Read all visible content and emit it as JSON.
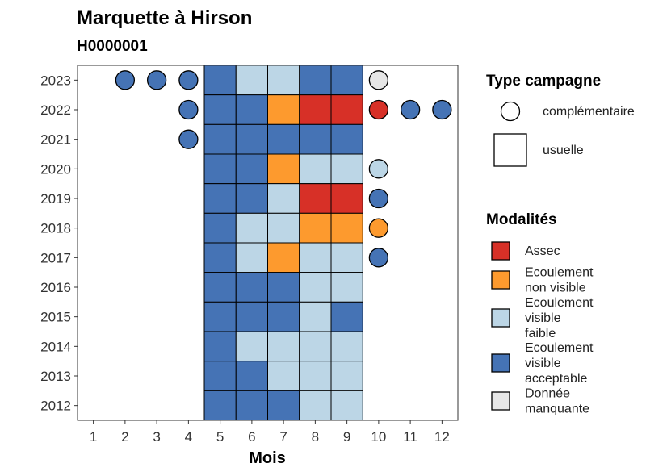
{
  "chart_data": {
    "type": "heatmap",
    "title": "Marquette à Hirson",
    "subtitle": "H0000001",
    "xlabel": "Mois",
    "ylabel": "",
    "x_ticks": [
      1,
      2,
      3,
      4,
      5,
      6,
      7,
      8,
      9,
      10,
      11,
      12
    ],
    "years": [
      2012,
      2013,
      2014,
      2015,
      2016,
      2017,
      2018,
      2019,
      2020,
      2021,
      2022,
      2023
    ],
    "xlim": [
      0.5,
      12.5
    ],
    "grid": false,
    "colors": {
      "Assec": "#d73027",
      "Ecoulement non visible": "#fd9a2e",
      "Ecoulement visible faible": "#bcd6e6",
      "Ecoulement visible acceptable": "#4573b5",
      "Donnée manquante": "#e6e6e6"
    },
    "legend_type": {
      "title": "Type campagne",
      "items": [
        {
          "label": "complémentaire",
          "shape": "circle"
        },
        {
          "label": "usuelle",
          "shape": "square"
        }
      ]
    },
    "legend_modalites": {
      "title": "Modalités",
      "items": [
        {
          "key": "Assec",
          "lines": [
            "Assec"
          ]
        },
        {
          "key": "Ecoulement non visible",
          "lines": [
            "Ecoulement",
            "non visible"
          ]
        },
        {
          "key": "Ecoulement visible faible",
          "lines": [
            "Ecoulement",
            "visible",
            "faible"
          ]
        },
        {
          "key": "Ecoulement visible acceptable",
          "lines": [
            "Ecoulement",
            "visible",
            "acceptable"
          ]
        },
        {
          "key": "Donnée manquante",
          "lines": [
            "Donnée",
            "manquante"
          ]
        }
      ]
    },
    "usuelle": [
      {
        "year": 2023,
        "values": [
          {
            "month": 5,
            "modalite": "Ecoulement visible acceptable"
          },
          {
            "month": 6,
            "modalite": "Ecoulement visible faible"
          },
          {
            "month": 7,
            "modalite": "Ecoulement visible faible"
          },
          {
            "month": 8,
            "modalite": "Ecoulement visible acceptable"
          },
          {
            "month": 9,
            "modalite": "Ecoulement visible acceptable"
          }
        ]
      },
      {
        "year": 2022,
        "values": [
          {
            "month": 5,
            "modalite": "Ecoulement visible acceptable"
          },
          {
            "month": 6,
            "modalite": "Ecoulement visible acceptable"
          },
          {
            "month": 7,
            "modalite": "Ecoulement non visible"
          },
          {
            "month": 8,
            "modalite": "Assec"
          },
          {
            "month": 9,
            "modalite": "Assec"
          }
        ]
      },
      {
        "year": 2021,
        "values": [
          {
            "month": 5,
            "modalite": "Ecoulement visible acceptable"
          },
          {
            "month": 6,
            "modalite": "Ecoulement visible acceptable"
          },
          {
            "month": 7,
            "modalite": "Ecoulement visible acceptable"
          },
          {
            "month": 8,
            "modalite": "Ecoulement visible acceptable"
          },
          {
            "month": 9,
            "modalite": "Ecoulement visible acceptable"
          }
        ]
      },
      {
        "year": 2020,
        "values": [
          {
            "month": 5,
            "modalite": "Ecoulement visible acceptable"
          },
          {
            "month": 6,
            "modalite": "Ecoulement visible acceptable"
          },
          {
            "month": 7,
            "modalite": "Ecoulement non visible"
          },
          {
            "month": 8,
            "modalite": "Ecoulement visible faible"
          },
          {
            "month": 9,
            "modalite": "Ecoulement visible faible"
          }
        ]
      },
      {
        "year": 2019,
        "values": [
          {
            "month": 5,
            "modalite": "Ecoulement visible acceptable"
          },
          {
            "month": 6,
            "modalite": "Ecoulement visible acceptable"
          },
          {
            "month": 7,
            "modalite": "Ecoulement visible faible"
          },
          {
            "month": 8,
            "modalite": "Assec"
          },
          {
            "month": 9,
            "modalite": "Assec"
          }
        ]
      },
      {
        "year": 2018,
        "values": [
          {
            "month": 5,
            "modalite": "Ecoulement visible acceptable"
          },
          {
            "month": 6,
            "modalite": "Ecoulement visible faible"
          },
          {
            "month": 7,
            "modalite": "Ecoulement visible faible"
          },
          {
            "month": 8,
            "modalite": "Ecoulement non visible"
          },
          {
            "month": 9,
            "modalite": "Ecoulement non visible"
          }
        ]
      },
      {
        "year": 2017,
        "values": [
          {
            "month": 5,
            "modalite": "Ecoulement visible acceptable"
          },
          {
            "month": 6,
            "modalite": "Ecoulement visible faible"
          },
          {
            "month": 7,
            "modalite": "Ecoulement non visible"
          },
          {
            "month": 8,
            "modalite": "Ecoulement visible faible"
          },
          {
            "month": 9,
            "modalite": "Ecoulement visible faible"
          }
        ]
      },
      {
        "year": 2016,
        "values": [
          {
            "month": 5,
            "modalite": "Ecoulement visible acceptable"
          },
          {
            "month": 6,
            "modalite": "Ecoulement visible acceptable"
          },
          {
            "month": 7,
            "modalite": "Ecoulement visible acceptable"
          },
          {
            "month": 8,
            "modalite": "Ecoulement visible faible"
          },
          {
            "month": 9,
            "modalite": "Ecoulement visible faible"
          }
        ]
      },
      {
        "year": 2015,
        "values": [
          {
            "month": 5,
            "modalite": "Ecoulement visible acceptable"
          },
          {
            "month": 6,
            "modalite": "Ecoulement visible acceptable"
          },
          {
            "month": 7,
            "modalite": "Ecoulement visible acceptable"
          },
          {
            "month": 8,
            "modalite": "Ecoulement visible faible"
          },
          {
            "month": 9,
            "modalite": "Ecoulement visible acceptable"
          }
        ]
      },
      {
        "year": 2014,
        "values": [
          {
            "month": 5,
            "modalite": "Ecoulement visible acceptable"
          },
          {
            "month": 6,
            "modalite": "Ecoulement visible faible"
          },
          {
            "month": 7,
            "modalite": "Ecoulement visible faible"
          },
          {
            "month": 8,
            "modalite": "Ecoulement visible faible"
          },
          {
            "month": 9,
            "modalite": "Ecoulement visible faible"
          }
        ]
      },
      {
        "year": 2013,
        "values": [
          {
            "month": 5,
            "modalite": "Ecoulement visible acceptable"
          },
          {
            "month": 6,
            "modalite": "Ecoulement visible acceptable"
          },
          {
            "month": 7,
            "modalite": "Ecoulement visible faible"
          },
          {
            "month": 8,
            "modalite": "Ecoulement visible faible"
          },
          {
            "month": 9,
            "modalite": "Ecoulement visible faible"
          }
        ]
      },
      {
        "year": 2012,
        "values": [
          {
            "month": 5,
            "modalite": "Ecoulement visible acceptable"
          },
          {
            "month": 6,
            "modalite": "Ecoulement visible acceptable"
          },
          {
            "month": 7,
            "modalite": "Ecoulement visible acceptable"
          },
          {
            "month": 8,
            "modalite": "Ecoulement visible faible"
          },
          {
            "month": 9,
            "modalite": "Ecoulement visible faible"
          }
        ]
      }
    ],
    "complementaire": [
      {
        "year": 2023,
        "month": 2,
        "modalite": "Ecoulement visible acceptable"
      },
      {
        "year": 2023,
        "month": 3,
        "modalite": "Ecoulement visible acceptable"
      },
      {
        "year": 2023,
        "month": 4,
        "modalite": "Ecoulement visible acceptable"
      },
      {
        "year": 2023,
        "month": 10,
        "modalite": "Donnée manquante"
      },
      {
        "year": 2022,
        "month": 4,
        "modalite": "Ecoulement visible acceptable"
      },
      {
        "year": 2022,
        "month": 10,
        "modalite": "Assec"
      },
      {
        "year": 2022,
        "month": 11,
        "modalite": "Ecoulement visible acceptable"
      },
      {
        "year": 2022,
        "month": 12,
        "modalite": "Ecoulement visible acceptable"
      },
      {
        "year": 2021,
        "month": 4,
        "modalite": "Ecoulement visible acceptable"
      },
      {
        "year": 2020,
        "month": 10,
        "modalite": "Ecoulement visible faible"
      },
      {
        "year": 2019,
        "month": 10,
        "modalite": "Ecoulement visible acceptable"
      },
      {
        "year": 2018,
        "month": 10,
        "modalite": "Ecoulement non visible"
      },
      {
        "year": 2017,
        "month": 10,
        "modalite": "Ecoulement visible acceptable"
      }
    ]
  }
}
